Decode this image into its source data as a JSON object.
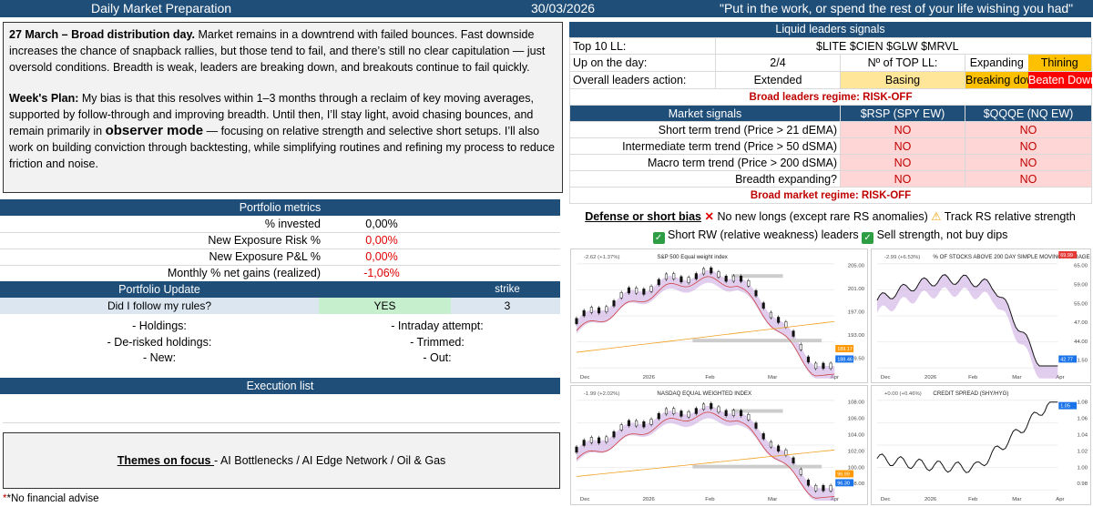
{
  "header": {
    "title": "Daily Market Preparation",
    "date": "30/03/2026",
    "quote": "\"Put in the work, or spend the rest of your life wishing you had\""
  },
  "commentary": {
    "day_title": "27 March – Broad distribution day.",
    "day_text": " Market remains in a downtrend with failed bounces. Fast downside increases the chance of snapback rallies, but those tend to fail, and there’s still no clear capitulation — just oversold conditions. Breadth is weak, leaders are breaking down, and breakouts continue to fail quickly.",
    "plan_title": "Week's Plan:",
    "plan_text_1": " My bias is that this resolves within 1–3 months through a reclaim of key moving averages, supported by follow-through and improving breadth. Until then, I’ll stay light, avoid chasing bounces, and remain primarily in ",
    "plan_mode": "observer mode",
    "plan_text_2": " — focusing on relative strength and selective short setups. I’ll also work on building conviction through backtesting, while simplifying routines and refining my process to reduce friction and noise."
  },
  "portfolio_metrics": {
    "title": "Portfolio metrics",
    "rows": [
      {
        "label": "% invested",
        "value": "0,00%"
      },
      {
        "label": "New Exposure Risk %",
        "value": "0,00%"
      },
      {
        "label": "New Exposure P&L %",
        "value": "0,00%"
      },
      {
        "label": "Monthly % net gains (realized)",
        "value": "-1,06%"
      }
    ]
  },
  "portfolio_update": {
    "title": "Portfolio Update",
    "strike_label": "strike",
    "question": "Did I follow my rules?",
    "answer": "YES",
    "strike_value": "3",
    "left_items": [
      "- Holdings:",
      "- De-risked holdings:",
      "- New:"
    ],
    "right_items": [
      "- Intraday attempt:",
      "- Trimmed:",
      "- Out:"
    ]
  },
  "execution": {
    "title": "Execution list"
  },
  "themes": {
    "label": "Themes on focus ",
    "text": "- AI Bottlenecks / AI Edge Network / Oil & Gas"
  },
  "footnote": "*No financial advise",
  "leaders": {
    "title": "Liquid leaders signals",
    "top10_label": "Top 10 LL:",
    "top10_value": "$LITE $CIEN $GLW $MRVL",
    "up_label": "Up on the day:",
    "up_value": "2/4",
    "no_top_label": "Nº of TOP LL:",
    "expanding": "Expanding",
    "thining": "Thining",
    "action_label": "Overall leaders action:",
    "extended": "Extended",
    "basing": "Basing",
    "breaking": "Breaking down",
    "beaten": "Beaten Down",
    "regime": "Broad leaders regime: RISK-OFF"
  },
  "market": {
    "title": "Market signals",
    "col1": "$RSP (SPY EW)",
    "col2": "$QQQE (NQ EW)",
    "rows": [
      {
        "label": "Short term trend (Price > 21 dEMA)",
        "v1": "NO",
        "v2": "NO"
      },
      {
        "label": "Intermediate term trend (Price > 50 dSMA)",
        "v1": "NO",
        "v2": "NO"
      },
      {
        "label": "Macro term trend (Price > 200 dSMA)",
        "v1": "NO",
        "v2": "NO"
      },
      {
        "label": "Breadth expanding?",
        "v1": "NO",
        "v2": "NO"
      }
    ],
    "regime": "Broad market regime: RISK-OFF"
  },
  "bias": {
    "title": "Defense or short bias",
    "item1": " No new longs (except rare RS anomalies) ",
    "item2": " Track RS relative strength",
    "item3": " Short RW (relative weakness) leaders ",
    "item4": " Sell strength, not buy dips"
  },
  "colors": {
    "navy": "#1f4e79",
    "risk_red": "#c00000",
    "no_bg": "#ffd6d6"
  },
  "charts": [
    {
      "title": "S&P 500 Equal weight index",
      "change": "-2.62 (+1.37%)",
      "x_labels": [
        "Dec",
        "2026",
        "Feb",
        "Mar",
        "Apr"
      ],
      "y_labels": [
        "205.00",
        "201.00",
        "197.00",
        "193.00",
        "189.50"
      ],
      "last": "188.46",
      "pre": "189.17",
      "low": "187.50"
    },
    {
      "title": "% OF STOCKS ABOVE 200 DAY SIMPLE MOVING AVERAGE",
      "change": "-2.99 (+6.53%)",
      "x_labels": [
        "Dec",
        "2026",
        "Feb",
        "Mar",
        "Apr"
      ],
      "y_labels": [
        "65.00",
        "59.00",
        "55.00",
        "47.00",
        "44.00",
        "41.50"
      ],
      "last": "42.77",
      "top": "69.99"
    },
    {
      "title": "NASDAQ EQUAL WEIGHTED INDEX",
      "change": "-1.99 (+2.02%)",
      "x_labels": [
        "Dec",
        "2026",
        "Feb",
        "Mar",
        "Apr"
      ],
      "y_labels": [
        "108.00",
        "106.00",
        "104.00",
        "102.00",
        "100.00",
        "98.00"
      ],
      "last": "96.30",
      "pre": "96.99"
    },
    {
      "title": "CREDIT SPREAD (SHY/HYG)",
      "change": "+0.00 (+0.46%)",
      "x_labels": [
        "Dec",
        "2026",
        "Feb",
        "Mar",
        "Apr"
      ],
      "y_labels": [
        "1.08",
        "1.06",
        "1.04",
        "1.02",
        "1.00",
        "0.98"
      ],
      "last": "1.05",
      "pre": "1.05"
    }
  ]
}
